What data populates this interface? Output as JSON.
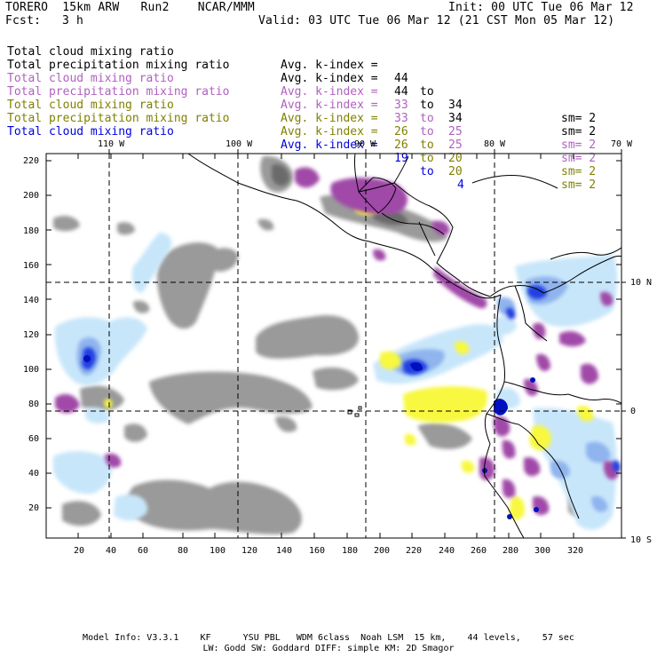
{
  "header": {
    "title": "TORERO  15km ARW   Run2    NCAR/MMM",
    "init": "Init: 00 UTC Tue 06 Mar 12",
    "fcst_label": "Fcst:",
    "fcst_value": "3 h",
    "valid": "Valid: 03 UTC Tue 06 Mar 12 (21 CST Mon 05 Mar 12)"
  },
  "legend": [
    {
      "name": "Total cloud mixing ratio",
      "avg": "Avg. k-index =",
      "range_from": "44",
      "to": "to",
      "range_to": "34",
      "sm": "sm= 2",
      "color": "#000000"
    },
    {
      "name": "Total precipitation mixing ratio",
      "avg": "Avg. k-index =",
      "range_from": "44",
      "to": "to",
      "range_to": "34",
      "sm": "sm= 2",
      "color": "#000000"
    },
    {
      "name": "Total cloud mixing ratio",
      "avg": "Avg. k-index =",
      "range_from": "33",
      "to": "to",
      "range_to": "25",
      "sm": "sm= 2",
      "color": "#b060c0"
    },
    {
      "name": "Total precipitation mixing ratio",
      "avg": "Avg. k-index =",
      "range_from": "33",
      "to": "to",
      "range_to": "25",
      "sm": "sm= 2",
      "color": "#b060c0"
    },
    {
      "name": "Total cloud mixing ratio",
      "avg": "Avg. k-index =",
      "range_from": "26",
      "to": "to",
      "range_to": "20",
      "sm": "sm= 2",
      "color": "#808000"
    },
    {
      "name": "Total precipitation mixing ratio",
      "avg": "Avg. k-index =",
      "range_from": "26",
      "to": "to",
      "range_to": "20",
      "sm": "sm= 2",
      "color": "#808000"
    },
    {
      "name": "Total cloud mixing ratio",
      "avg": "Avg. k-index =",
      "range_from": "19",
      "to": "to",
      "range_to": "4",
      "sm": "",
      "color": "#0000e0"
    }
  ],
  "map": {
    "lon_labels": [
      "110 W",
      "100 W",
      "90 W",
      "80 W",
      "70 W"
    ],
    "lat_labels": [
      "10 N",
      "0",
      "10 S"
    ],
    "y_ticks": [
      "220",
      "200",
      "180",
      "160",
      "140",
      "120",
      "100",
      "80",
      "60",
      "40",
      "20"
    ],
    "x_ticks": [
      "20",
      "40",
      "60",
      "80",
      "100",
      "120",
      "140",
      "160",
      "180",
      "200",
      "220",
      "240",
      "260",
      "280",
      "300",
      "320"
    ],
    "colors": {
      "gray": "#9a9a9a",
      "dark_gray": "#6a6a6a",
      "purple": "#a04aa8",
      "light_blue": "#c8e6fa",
      "mid_blue": "#8fb4ee",
      "blue": "#2040e0",
      "dark_blue": "#0010c0",
      "yellow": "#f8f840",
      "coast": "#000000"
    }
  },
  "footer": {
    "line1": "Model Info: V3.3.1    KF      YSU PBL   WDM 6class  Noah LSM  15 km,    44 levels,    57 sec",
    "line2": "LW: Godd SW: Goddard DIFF: simple KM: 2D Smagor"
  }
}
